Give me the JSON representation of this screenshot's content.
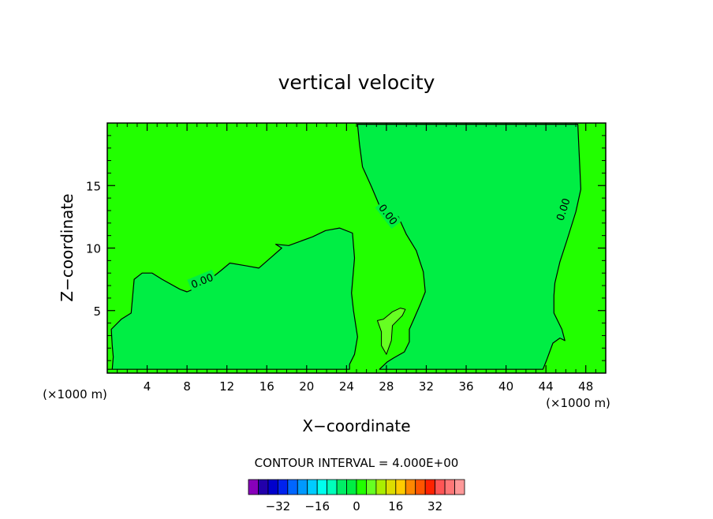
{
  "chart_data": {
    "type": "heatmap",
    "title": "vertical velocity",
    "xlabel": "X−coordinate",
    "ylabel": "Z−coordinate",
    "x_unit": "(×1000 m)",
    "x_unit_right": "(×1000 m)",
    "xlim": [
      0,
      50
    ],
    "ylim": [
      0,
      20
    ],
    "x_ticks": [
      4,
      8,
      12,
      16,
      20,
      24,
      28,
      32,
      36,
      40,
      44,
      48
    ],
    "x_tick_labels": [
      "4",
      "8",
      "12",
      "16",
      "20",
      "24",
      "28",
      "32",
      "36",
      "40",
      "44",
      "48"
    ],
    "y_ticks": [
      5,
      10,
      15
    ],
    "y_tick_labels": [
      "5",
      "10",
      "15"
    ],
    "contour_interval_text": "CONTOUR INTERVAL = 4.000E+00",
    "contour_labels": [
      {
        "text": "0.00",
        "x": 9.5,
        "y": 7.4,
        "angle": -22
      },
      {
        "text": "0.00",
        "x": 28.2,
        "y": 12.7,
        "angle": 52
      },
      {
        "text": "0.00",
        "x": 45.7,
        "y": 13.1,
        "angle": -72
      }
    ],
    "regions": [
      {
        "name": "positive",
        "color": "#22ff00"
      },
      {
        "name": "negative",
        "color": "#00ee44"
      },
      {
        "name": "positive-max",
        "color": "#66ff22"
      }
    ],
    "negative_region_main": [
      [
        0,
        0.3
      ],
      [
        0.5,
        0.3
      ],
      [
        0.6,
        1.3
      ],
      [
        0.5,
        2.2
      ],
      [
        0.4,
        3.5
      ],
      [
        1.4,
        4.3
      ],
      [
        2.4,
        4.8
      ],
      [
        2.7,
        7.5
      ],
      [
        3.5,
        8.0
      ],
      [
        4.5,
        8.0
      ],
      [
        5.5,
        7.5
      ],
      [
        7.3,
        6.7
      ],
      [
        8.0,
        6.5
      ],
      [
        9.5,
        7.0
      ],
      [
        11.4,
        8.2
      ],
      [
        12.3,
        8.8
      ],
      [
        13.8,
        8.6
      ],
      [
        15.2,
        8.4
      ],
      [
        16.5,
        9.3
      ],
      [
        17.5,
        10.0
      ],
      [
        16.9,
        10.3
      ],
      [
        18.2,
        10.2
      ],
      [
        20.6,
        10.9
      ],
      [
        21.9,
        11.4
      ],
      [
        23.3,
        11.6
      ],
      [
        24.6,
        11.2
      ],
      [
        24.8,
        9.2
      ],
      [
        24.5,
        6.4
      ],
      [
        24.7,
        5.0
      ],
      [
        25.1,
        2.9
      ],
      [
        24.8,
        1.5
      ],
      [
        24.3,
        0.7
      ],
      [
        24.3,
        0.3
      ]
    ],
    "negative_region_center": [
      [
        25.1,
        19.9
      ],
      [
        25.3,
        18.3
      ],
      [
        25.6,
        16.5
      ],
      [
        26.5,
        14.9
      ],
      [
        27.3,
        13.4
      ],
      [
        28.3,
        12.9
      ],
      [
        29.2,
        12.5
      ],
      [
        30.0,
        11.1
      ],
      [
        31.0,
        9.8
      ],
      [
        31.7,
        8.1
      ],
      [
        31.9,
        6.5
      ],
      [
        31.4,
        5.5
      ],
      [
        30.8,
        4.4
      ],
      [
        30.3,
        3.5
      ],
      [
        30.3,
        2.5
      ],
      [
        29.8,
        1.7
      ],
      [
        28.7,
        1.2
      ],
      [
        28.1,
        0.9
      ],
      [
        27.3,
        0.3
      ],
      [
        43.7,
        0.3
      ],
      [
        44.1,
        1.1
      ],
      [
        44.7,
        2.4
      ],
      [
        45.4,
        2.8
      ],
      [
        45.9,
        2.6
      ],
      [
        45.6,
        3.5
      ],
      [
        44.8,
        4.8
      ],
      [
        44.8,
        6.2
      ],
      [
        44.9,
        7.2
      ],
      [
        45.4,
        8.9
      ],
      [
        46.1,
        10.6
      ],
      [
        47.0,
        12.9
      ],
      [
        47.5,
        14.7
      ],
      [
        47.4,
        16.5
      ],
      [
        47.3,
        18.1
      ],
      [
        47.2,
        19.9
      ]
    ],
    "positive_max_region": [
      [
        27.1,
        4.2
      ],
      [
        27.5,
        3.3
      ],
      [
        27.5,
        2.2
      ],
      [
        28.0,
        1.5
      ],
      [
        28.5,
        2.6
      ],
      [
        28.6,
        3.8
      ],
      [
        29.6,
        4.6
      ],
      [
        29.9,
        5.1
      ],
      [
        29.4,
        5.2
      ],
      [
        28.6,
        4.9
      ],
      [
        28.3,
        4.7
      ],
      [
        27.7,
        4.3
      ]
    ],
    "colorbar": {
      "colors": [
        "#8800bb",
        "#2200aa",
        "#0000cc",
        "#0022ee",
        "#0066ff",
        "#0099ff",
        "#00ccff",
        "#00ffee",
        "#00ffbb",
        "#00ee66",
        "#00ee44",
        "#22ff00",
        "#66ff22",
        "#aaee00",
        "#dddd00",
        "#ffcc00",
        "#ff8800",
        "#ff5500",
        "#ff2200",
        "#ff5555",
        "#ff7777",
        "#ff9999"
      ],
      "tick_labels": [
        "−32",
        "−16",
        "0",
        "16",
        "32"
      ],
      "tick_values": [
        -32,
        -16,
        0,
        16,
        32
      ],
      "range": [
        -44,
        44
      ]
    }
  }
}
